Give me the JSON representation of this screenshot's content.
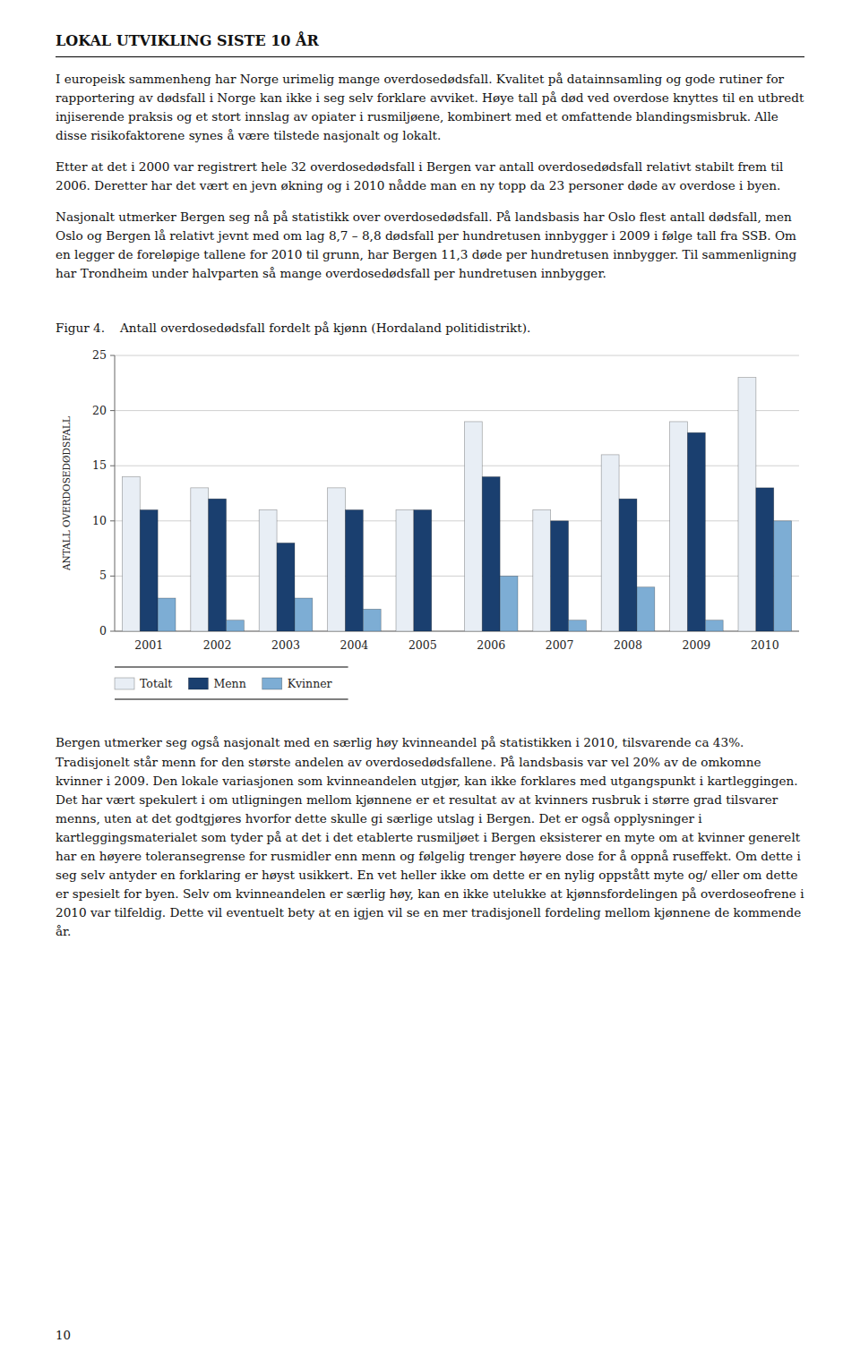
{
  "page": {
    "top_title": "LOKAL UTVIKLING SISTE 10 ÅR",
    "paragraphs_top": [
      "I europeisk sammenheng har Norge urimelig mange overdosedødsfall. Kvalitet på datainnsamling og gode rutiner for rapportering av dødsfall i Norge kan ikke i seg selv forklare avviket. Høye tall på død ved overdose knyttes til en utbredt injiserende praksis og et stort innslag av opiater i rusmiljøene, kombinert med et omfattende blandingsmisbruk. Alle disse risikofaktorene synes å være tilstede nasjonalt og lokalt.",
      "Etter at det i 2000 var registrert hele 32 overdosedødsfall i Bergen var antall overdosedødsfall relativt stabilt frem til 2006. Deretter har det vært en jevn økning og i 2010 nådde man en ny topp da 23 personer døde av overdose i byen.",
      "Nasjonalt utmerker Bergen seg nå på statistikk over overdosedødsfall. På landsbasis har Oslo flest antall dødsfall, men Oslo og Bergen lå relativt jevnt med om lag 8,7 – 8,8 dødsfall per hundretusen innbygger i 2009 i følge tall fra SSB. Om en legger de foreløpige tallene for 2010 til grunn, har Bergen 11,3 døde per hundretusen innbygger. Til sammenligning har Trondheim under halvparten så mange overdosedødsfall per hundretusen innbygger."
    ],
    "figure_label": "Figur 4.",
    "paragraphs_bottom": [
      "Bergen utmerker seg også nasjonalt med en særlig høy kvinneandel på statistikken i 2010, tilsvarende ca 43%. Tradisjonelt står menn for den største andelen av overdosedødsfallene. På landsbasis var vel 20% av de omkomne kvinner i 2009. Den lokale variasjonen som kvinneandelen utgjør, kan ikke forklares med utgangspunkt i kartleggingen. Det har vært spekulert i om utligningen mellom kjønnene er et resultat av at kvinners rusbruk i større grad tilsvarer menns, uten at det godtgjøres hvorfor dette skulle gi særlige utslag i Bergen. Det er også opplysninger i kartleggingsmaterialet som tyder på at det i det etablerte rusmiljøet i Bergen eksisterer en myte om at kvinner generelt har en høyere toleransegrense for rusmidler enn menn og følgelig trenger høyere dose for å oppnå ruseffekt. Om dette i seg selv antyder en forklaring er høyst usikkert. En vet heller ikke om dette er en nylig oppstått myte og/ eller om dette er spesielt for byen. Selv om kvinneandelen er særlig høy, kan en ikke utelukke at kjønnsfordelingen på overdoseofrene i 2010 var tilfeldig. Dette vil eventuelt bety at en igjen vil se en mer tradisjonell fordeling mellom kjønnene de kommende år."
    ],
    "page_number": "10"
  },
  "chart_data": {
    "type": "bar",
    "title": "Antall overdosedødsfall fordelt på kjønn (Hordaland politidistrikt).",
    "ylabel": "ANTALL OVERDOSEDØDSFALL",
    "categories": [
      "2001",
      "2002",
      "2003",
      "2004",
      "2005",
      "2006",
      "2007",
      "2008",
      "2009",
      "2010"
    ],
    "series": [
      {
        "name": "Totalt",
        "color": "#e8eef5",
        "values": [
          14,
          13,
          11,
          13,
          11,
          19,
          11,
          16,
          19,
          23
        ]
      },
      {
        "name": "Menn",
        "color": "#1a3f6f",
        "values": [
          11,
          12,
          8,
          11,
          11,
          14,
          10,
          12,
          18,
          13
        ]
      },
      {
        "name": "Kvinner",
        "color": "#7dadd4",
        "values": [
          3,
          1,
          3,
          2,
          0,
          5,
          1,
          4,
          1,
          10
        ]
      }
    ],
    "ylim": [
      0,
      25
    ],
    "yticks": [
      0,
      5,
      10,
      15,
      20,
      25
    ],
    "grid": true,
    "legend": "bottom"
  }
}
